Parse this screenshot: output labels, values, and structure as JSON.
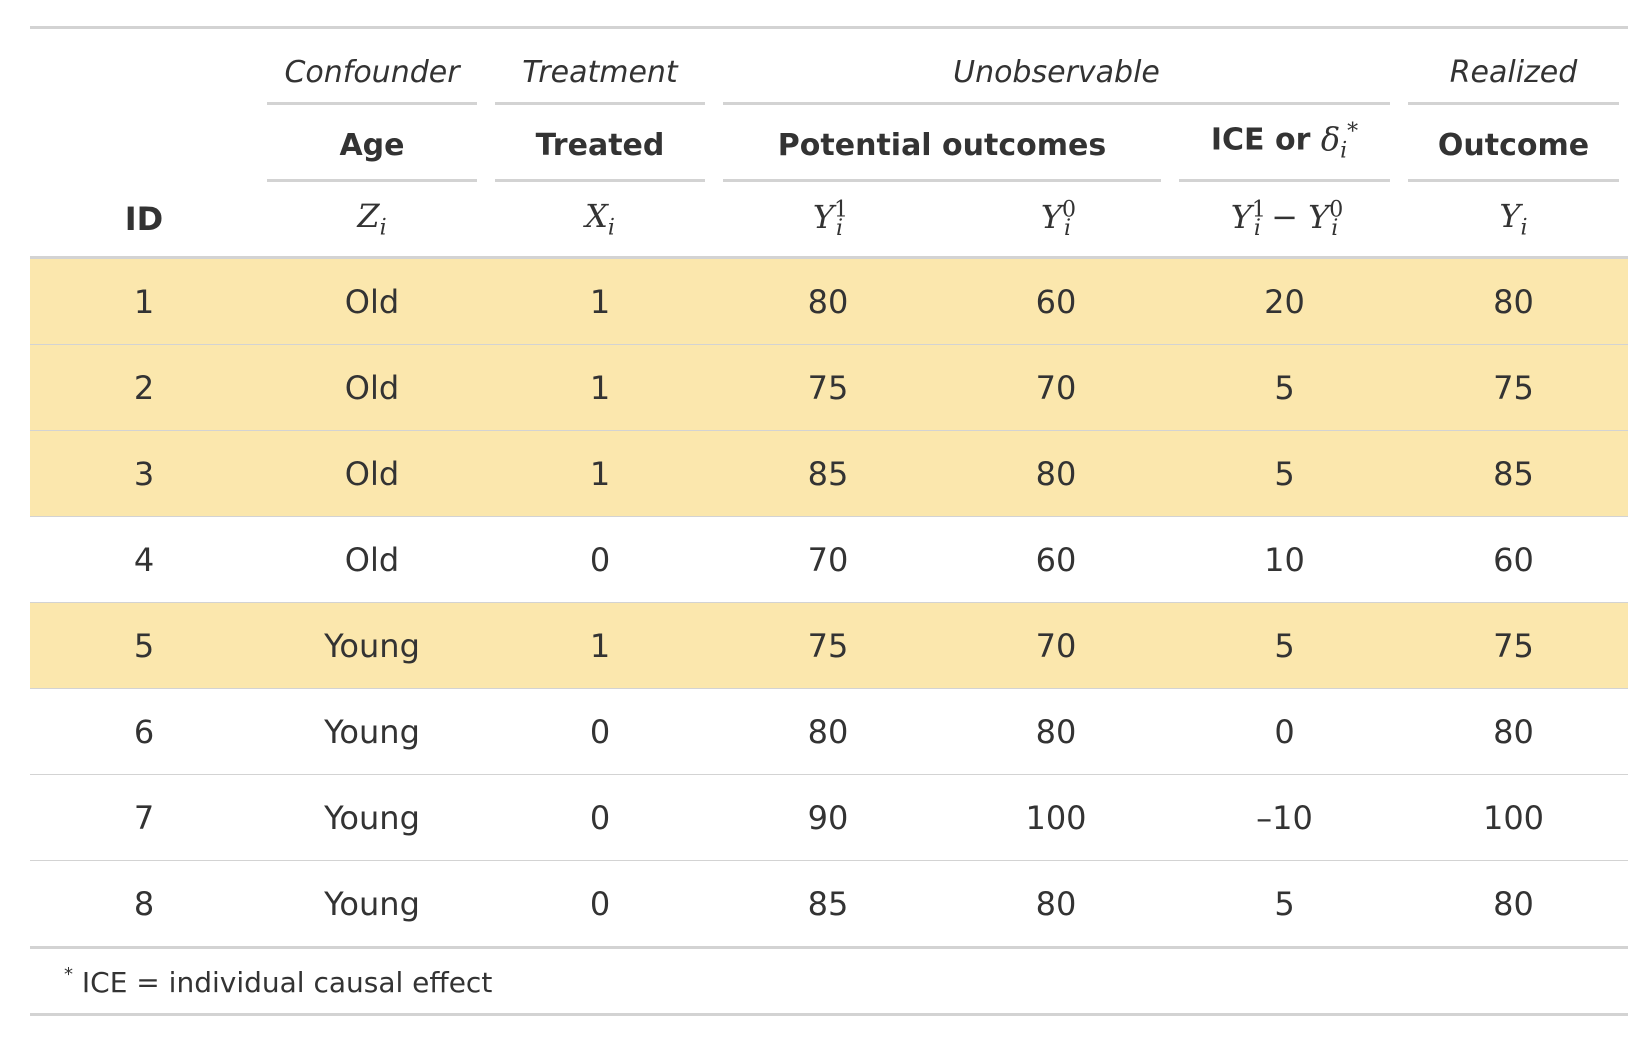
{
  "spanners": {
    "confounder": "Confounder",
    "treatment": "Treatment",
    "unobservable": "Unobservable",
    "realized": "Realized"
  },
  "subspanners": {
    "age": "Age",
    "treated": "Treated",
    "potential_outcomes": "Potential outcomes",
    "ice_text": "ICE or",
    "outcome": "Outcome"
  },
  "columns": {
    "id": "ID",
    "z": "Z",
    "z_sub": "i",
    "x": "X",
    "x_sub": "i",
    "y1": "Y",
    "y1_sup": "1",
    "y1_sub": "i",
    "y0": "Y",
    "y0_sup": "0",
    "y0_sub": "i",
    "ice_y": "Y",
    "ice_sup1": "1",
    "ice_sub1": "i",
    "ice_minus": "−",
    "ice_y2": "Y",
    "ice_sup2": "0",
    "ice_sub2": "i",
    "out": "Y",
    "out_sub": "i",
    "delta": "δ",
    "delta_sub": "i",
    "delta_star": "*"
  },
  "rows": [
    {
      "id": "1",
      "age": "Old",
      "treated": "1",
      "y1": "80",
      "y0": "60",
      "ice": "20",
      "outcome": "80",
      "highlight": true
    },
    {
      "id": "2",
      "age": "Old",
      "treated": "1",
      "y1": "75",
      "y0": "70",
      "ice": "5",
      "outcome": "75",
      "highlight": true
    },
    {
      "id": "3",
      "age": "Old",
      "treated": "1",
      "y1": "85",
      "y0": "80",
      "ice": "5",
      "outcome": "85",
      "highlight": true
    },
    {
      "id": "4",
      "age": "Old",
      "treated": "0",
      "y1": "70",
      "y0": "60",
      "ice": "10",
      "outcome": "60",
      "highlight": false
    },
    {
      "id": "5",
      "age": "Young",
      "treated": "1",
      "y1": "75",
      "y0": "70",
      "ice": "5",
      "outcome": "75",
      "highlight": true
    },
    {
      "id": "6",
      "age": "Young",
      "treated": "0",
      "y1": "80",
      "y0": "80",
      "ice": "0",
      "outcome": "80",
      "highlight": false
    },
    {
      "id": "7",
      "age": "Young",
      "treated": "0",
      "y1": "90",
      "y0": "100",
      "ice": "–10",
      "outcome": "100",
      "highlight": false
    },
    {
      "id": "8",
      "age": "Young",
      "treated": "0",
      "y1": "85",
      "y0": "80",
      "ice": "5",
      "outcome": "80",
      "highlight": false
    }
  ],
  "colors": {
    "highlight": "#fbe7ad",
    "rule": "#d3d3d3"
  },
  "footnote": {
    "mark": "*",
    "text": "ICE = individual causal effect"
  }
}
